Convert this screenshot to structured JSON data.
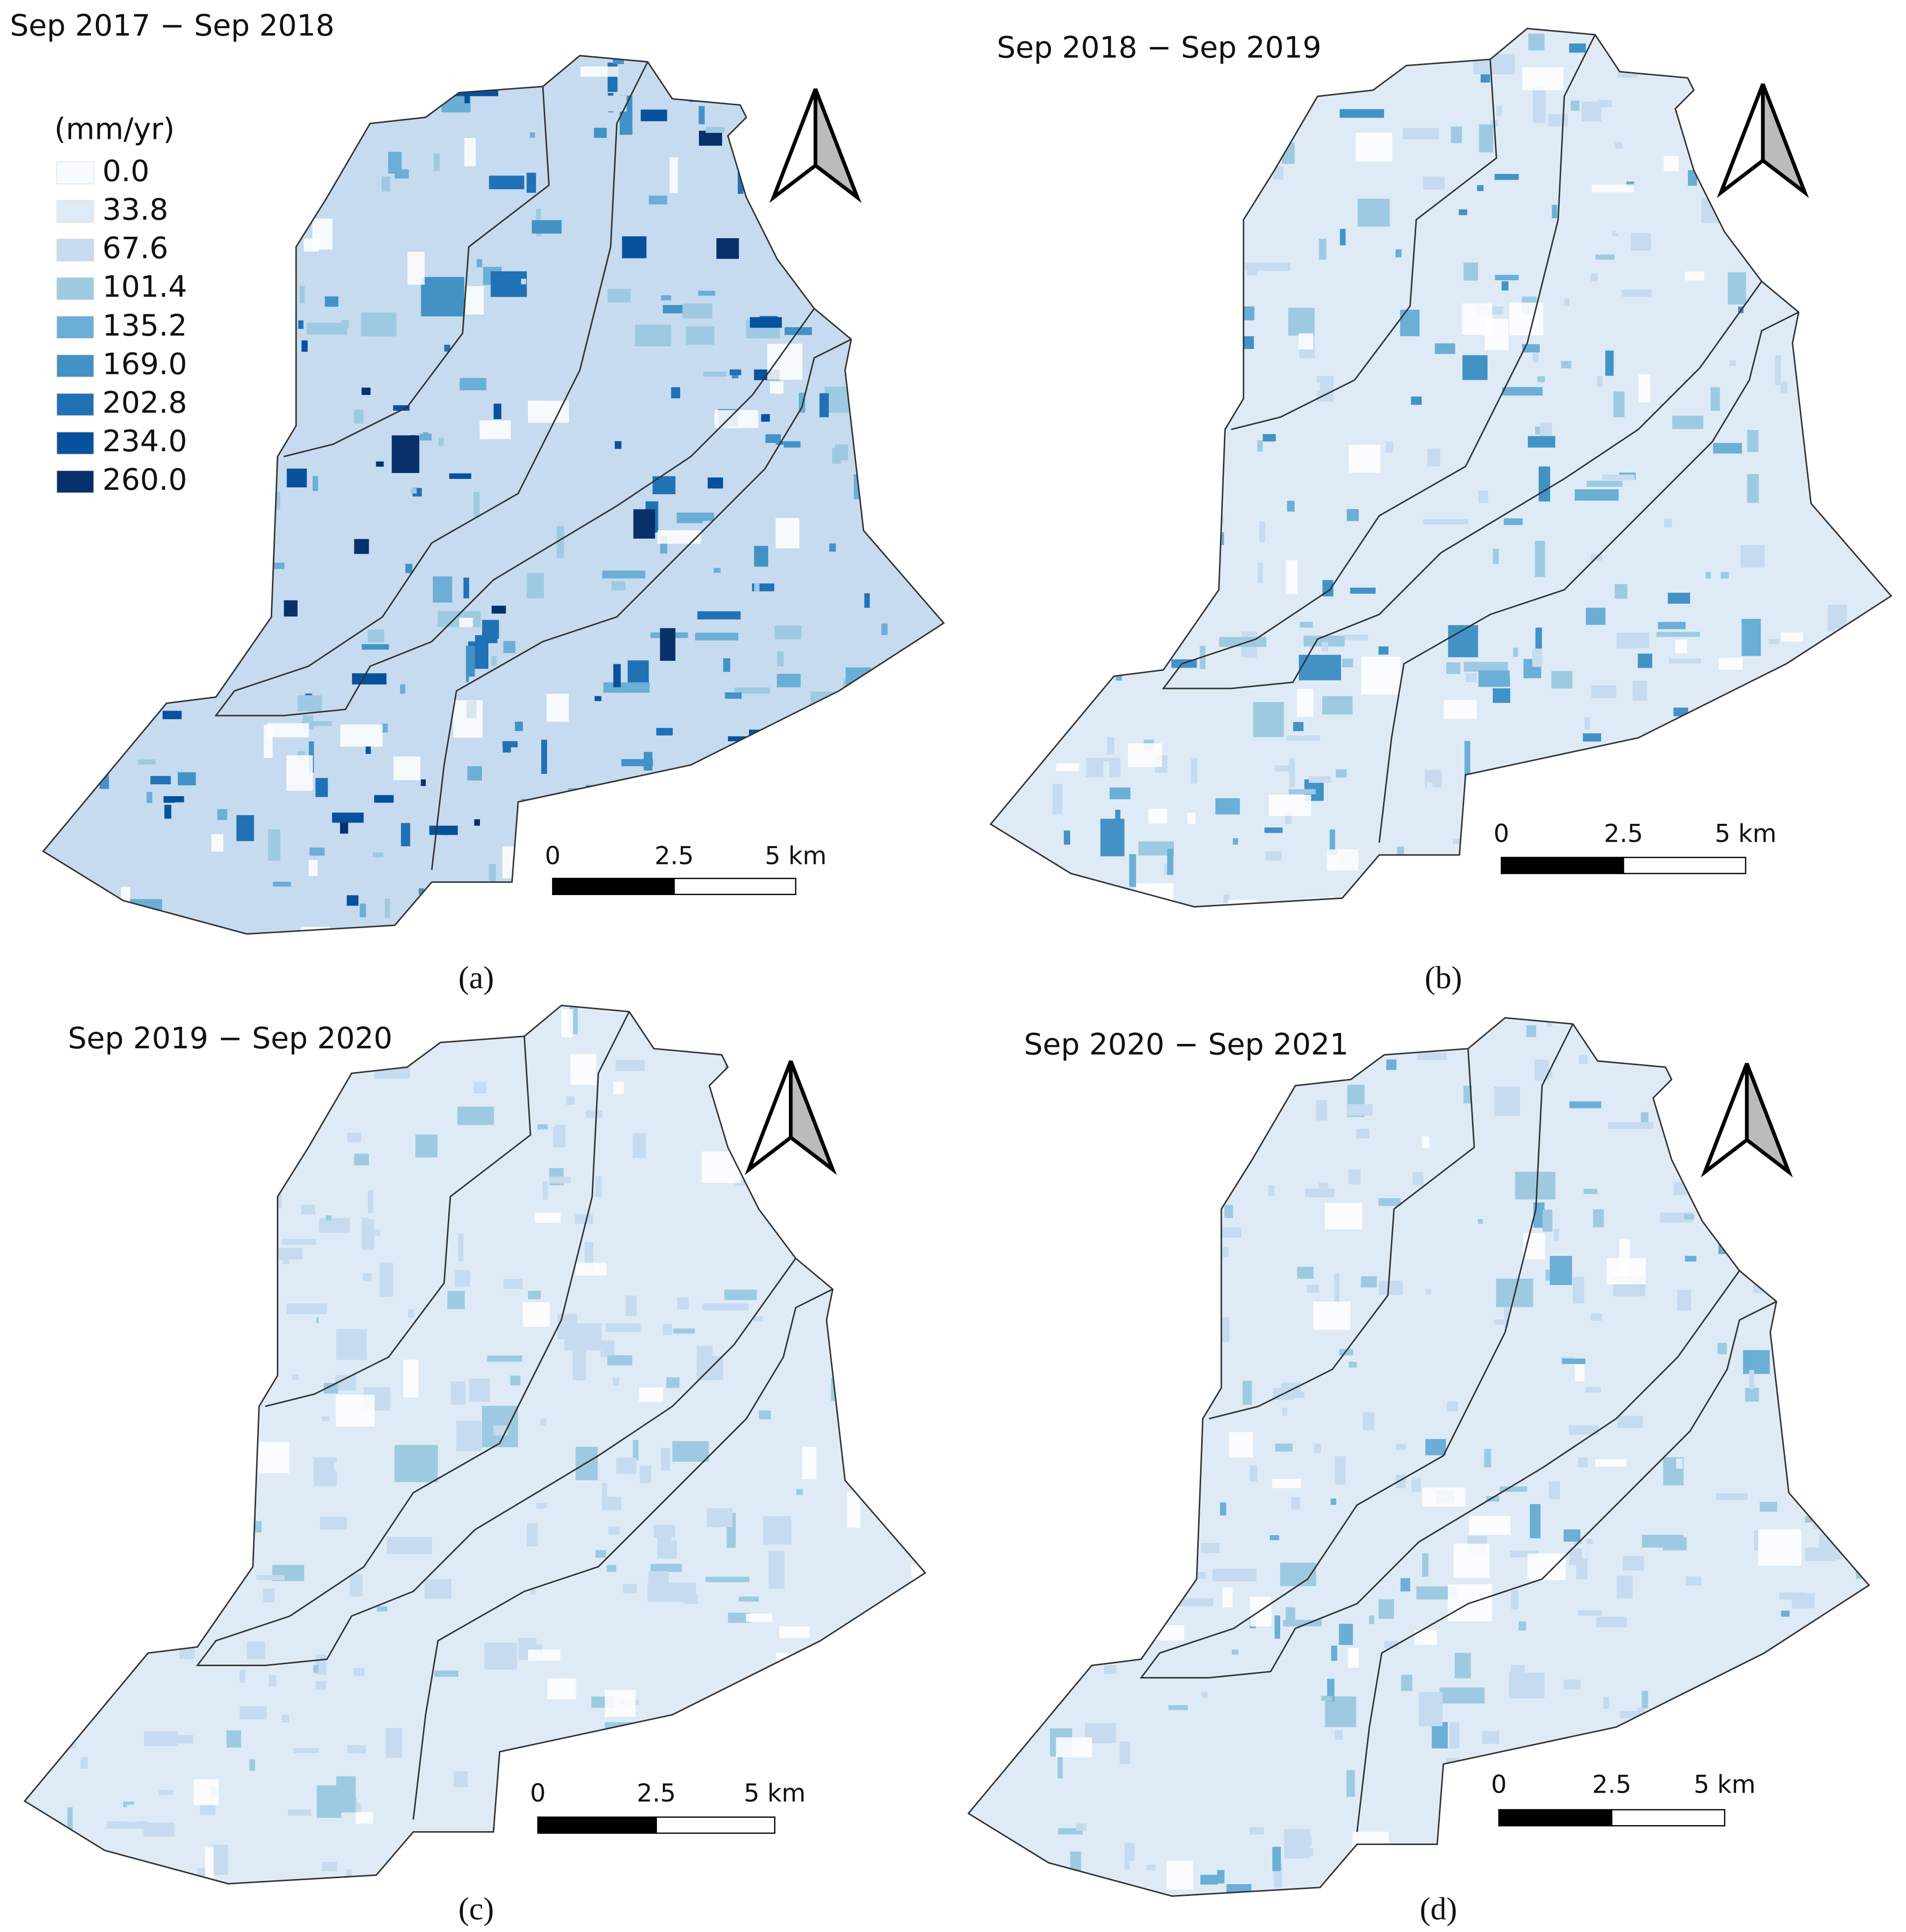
{
  "legend": {
    "title": "(mm/yr)",
    "items": [
      {
        "label": "0.0",
        "color": "#f7fbff"
      },
      {
        "label": "33.8",
        "color": "#deebf7"
      },
      {
        "label": "67.6",
        "color": "#c6dbef"
      },
      {
        "label": "101.4",
        "color": "#9ecae1"
      },
      {
        "label": "135.2",
        "color": "#6baed6"
      },
      {
        "label": "169.0",
        "color": "#4292c6"
      },
      {
        "label": "202.8",
        "color": "#2171b5"
      },
      {
        "label": "234.0",
        "color": "#08519c"
      },
      {
        "label": "260.0",
        "color": "#08306b"
      }
    ]
  },
  "panels": [
    {
      "title": "Sep 2017 − Sep 2018",
      "caption": "(a)",
      "scale_bar": [
        "0",
        "2.5",
        "5 km"
      ]
    },
    {
      "title": "Sep 2018 − Sep 2019",
      "caption": "(b)",
      "scale_bar": [
        "0",
        "2.5",
        "5 km"
      ]
    },
    {
      "title": "Sep 2019 − Sep 2020",
      "caption": "(c)",
      "scale_bar": [
        "0",
        "2.5",
        "5 km"
      ]
    },
    {
      "title": "Sep 2020 − Sep 2021",
      "caption": "(d)",
      "scale_bar": [
        "0",
        "2.5",
        "5 km"
      ]
    }
  ]
}
